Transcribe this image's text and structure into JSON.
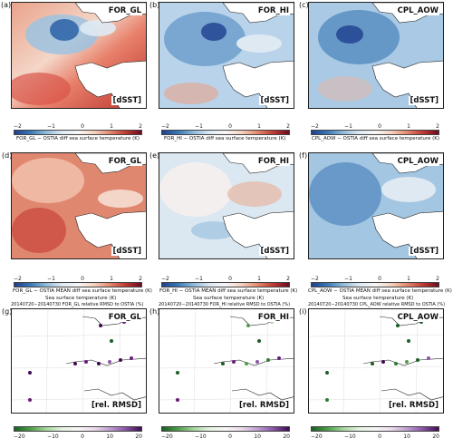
{
  "row1": [
    {
      "label": "(a)",
      "title": "FOR_GL",
      "tag": "[dSST]",
      "cbar_label": "FOR_GL − OSTIA   diff  sea surface temperature (K)"
    },
    {
      "label": "(b)",
      "title": "FOR_HI",
      "tag": "[dSST]",
      "cbar_label": "FOR_HI − OSTIA   diff  sea surface temperature (K)"
    },
    {
      "label": "(c)",
      "title": "CPL_AOW",
      "tag": "[dSST]",
      "cbar_label": "CPL_AOW − OSTIA   diff  sea surface temperature (K)"
    }
  ],
  "row2": [
    {
      "label": "(d)",
      "title": "FOR_GL",
      "tag": "[dSST]",
      "cbar_title": "Sea surface temperature (K)",
      "cbar_label": "FOR_GL − OSTIA MEAN   diff  sea surface temperature (K)"
    },
    {
      "label": "(e)",
      "title": "FOR_HI",
      "tag": "[dSST]",
      "cbar_title": "Sea surface temperature (K)",
      "cbar_label": "FOR_HI − OSTIA MEAN   diff  sea surface temperature (K)"
    },
    {
      "label": "(f)",
      "title": "CPL_AOW",
      "tag": "[dSST]",
      "cbar_title": "Sea surface temperature (K)",
      "cbar_label": "CPL_AOW − OSTIA MEAN   diff  sea surface temperature (K)"
    }
  ],
  "row3": [
    {
      "label": "(g)",
      "title": "FOR_GL",
      "tag": "[rel. RMSD]",
      "top_title": "20140720−20140730 FOR_GL relative RMSD to OSTIA (%)"
    },
    {
      "label": "(h)",
      "title": "FOR_HI",
      "tag": "[rel. RMSD]",
      "top_title": "20140720−20140730 FOR_HI relative RMSD to OSTIA (%)"
    },
    {
      "label": "(i)",
      "title": "CPL_AOW",
      "tag": "[rel. RMSD]",
      "top_title": "20140720−20140730 CPL_AOW relative RMSD to OSTIA (%)"
    }
  ],
  "sst_ticks": [
    "−2",
    "−1",
    "0",
    "1",
    "2"
  ],
  "rmsd_ticks": [
    "−20",
    "−10",
    "0",
    "10",
    "20"
  ],
  "colors": {
    "cold": "#2c62a8",
    "warm": "#c0392b",
    "green": "#2e7d32",
    "purple": "#6a1b7a"
  }
}
